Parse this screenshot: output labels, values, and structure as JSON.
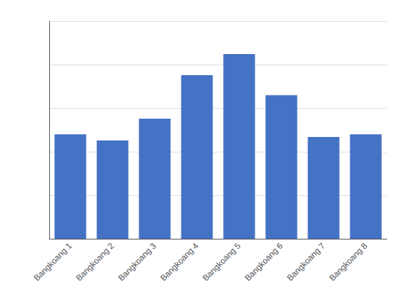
{
  "chart_data": {
    "type": "bar",
    "categories": [
      "Bangkoang 1",
      "Bangkoang 2",
      "Bangkoang 3",
      "Bangkoang 4",
      "Bangkoang 5",
      "Bangkoang 6",
      "Bangkoang 7",
      "Bangkoang 8"
    ],
    "values": [
      1.2,
      1.13,
      1.38,
      1.88,
      2.12,
      1.65,
      1.17,
      1.2
    ],
    "color": "#4472C4",
    "ylim": [
      0,
      2.5
    ],
    "yticks": [
      0.5,
      1.0,
      1.5,
      2.0,
      2.5
    ],
    "grid": true,
    "tick_labels": "x"
  }
}
